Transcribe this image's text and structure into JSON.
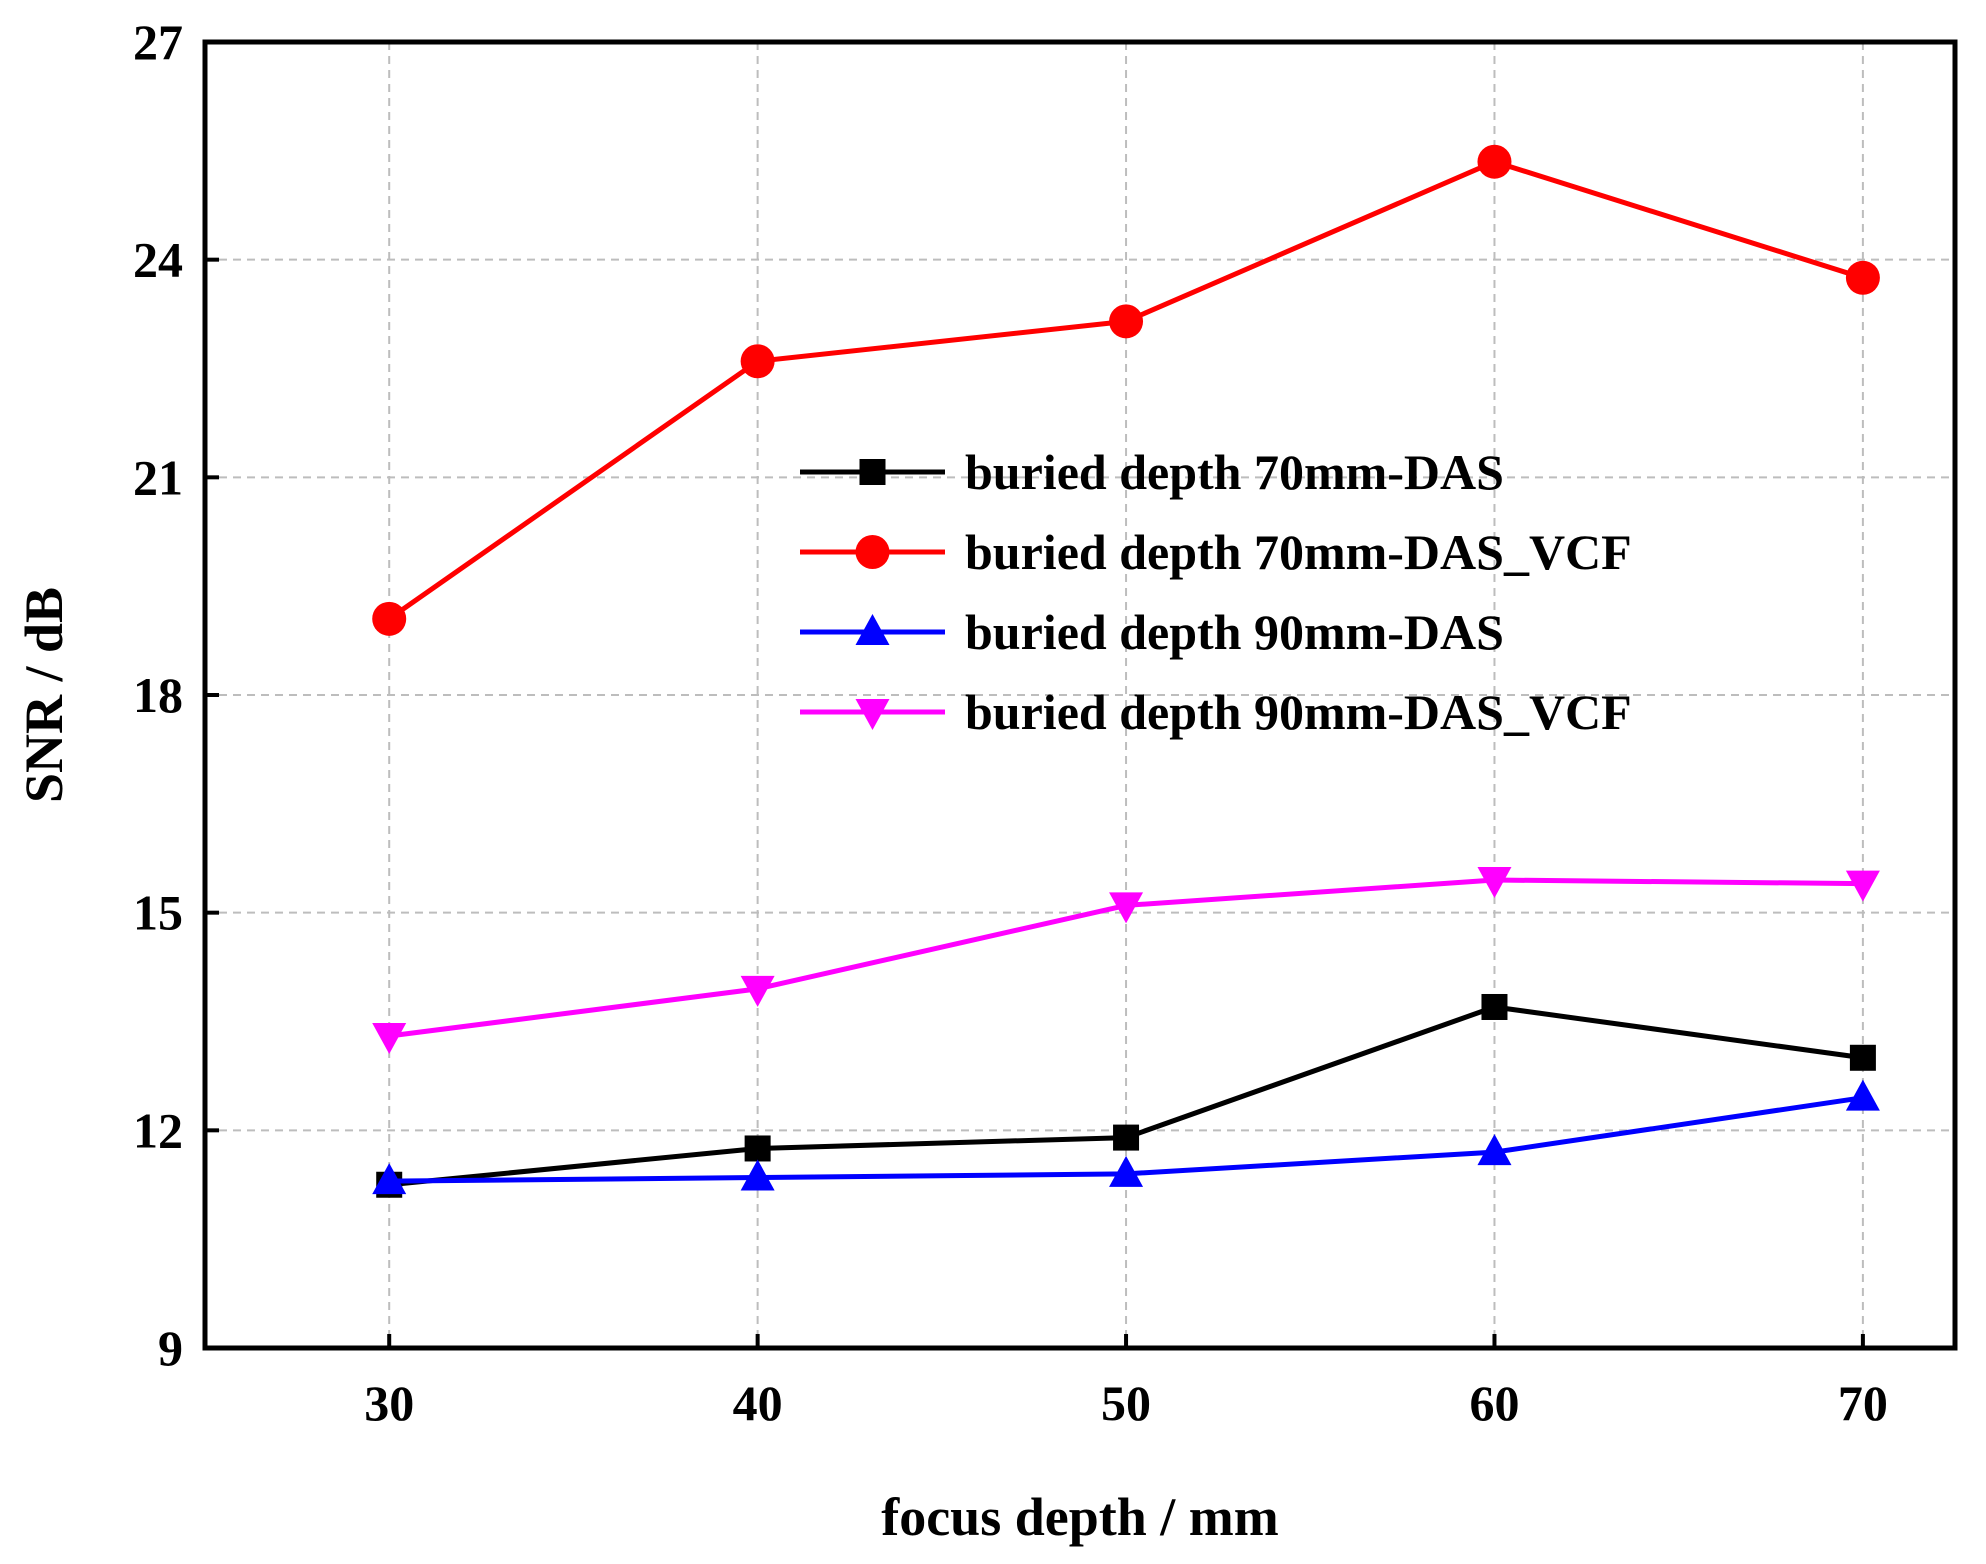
{
  "chart_data": {
    "type": "line",
    "title": "",
    "xlabel": "focus depth / mm",
    "ylabel": "SNR / dB",
    "x": [
      30,
      40,
      50,
      60,
      70
    ],
    "xlim": [
      25,
      72.5
    ],
    "ylim": [
      9,
      27
    ],
    "xticks": [
      "30",
      "40",
      "50",
      "60",
      "70"
    ],
    "yticks": [
      "9",
      "12",
      "15",
      "18",
      "21",
      "24",
      "27"
    ],
    "grid": true,
    "legend_position": "center-right",
    "series": [
      {
        "name": "buried depth 70mm-DAS",
        "values": [
          11.25,
          11.75,
          11.9,
          13.7,
          13.0
        ],
        "color": "#000000",
        "marker": "square"
      },
      {
        "name": "buried depth 70mm-DAS_VCF",
        "values": [
          19.05,
          22.6,
          23.15,
          25.35,
          23.75
        ],
        "color": "#ff0000",
        "marker": "circle"
      },
      {
        "name": "buried depth 90mm-DAS",
        "values": [
          11.3,
          11.35,
          11.4,
          11.7,
          12.45
        ],
        "color": "#0000ff",
        "marker": "triangle-up"
      },
      {
        "name": "buried depth 90mm-DAS_VCF",
        "values": [
          13.3,
          13.95,
          15.1,
          15.45,
          15.4
        ],
        "color": "#ff00ff",
        "marker": "triangle-down"
      }
    ]
  }
}
